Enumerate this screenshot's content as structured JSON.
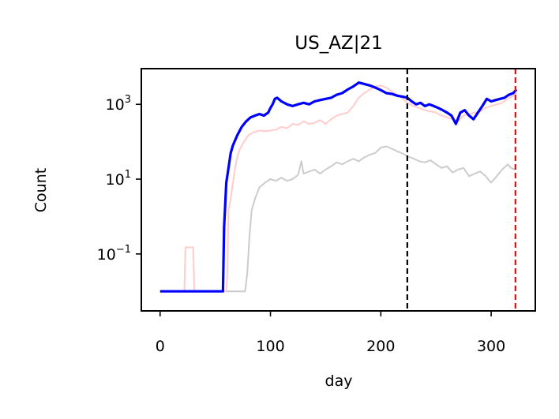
{
  "chart_data": {
    "type": "line",
    "title": "US_AZ|21",
    "xlabel": "day",
    "ylabel": "Count",
    "xlim": [
      -17,
      340
    ],
    "ylim": [
      0.003,
      9000
    ],
    "yscale": "log",
    "grid": false,
    "xticks": [
      0,
      100,
      200,
      300
    ],
    "xtick_labels": [
      "0",
      "100",
      "200",
      "300"
    ],
    "yticks": [
      0.1,
      10,
      1000
    ],
    "ytick_labels": [
      {
        "base": "10",
        "exp": "−1"
      },
      {
        "base": "10",
        "exp": "1"
      },
      {
        "base": "10",
        "exp": "3"
      }
    ],
    "vlines": [
      {
        "x": 224,
        "color": "#000000",
        "style": "dashed"
      },
      {
        "x": 322,
        "color": "#ff0000",
        "style": "dashed"
      }
    ],
    "series": [
      {
        "color": "#cccccc",
        "points": [
          [
            0,
            0.01
          ],
          [
            77,
            0.01
          ],
          [
            79,
            0.03
          ],
          [
            81,
            0.3
          ],
          [
            83,
            1.5
          ],
          [
            86,
            3
          ],
          [
            90,
            6
          ],
          [
            95,
            8
          ],
          [
            100,
            10
          ],
          [
            105,
            9
          ],
          [
            110,
            11
          ],
          [
            115,
            9
          ],
          [
            120,
            10
          ],
          [
            125,
            13
          ],
          [
            128,
            30
          ],
          [
            130,
            14
          ],
          [
            135,
            16
          ],
          [
            140,
            18
          ],
          [
            145,
            14
          ],
          [
            150,
            18
          ],
          [
            155,
            22
          ],
          [
            160,
            28
          ],
          [
            165,
            25
          ],
          [
            170,
            30
          ],
          [
            175,
            35
          ],
          [
            180,
            30
          ],
          [
            185,
            38
          ],
          [
            190,
            45
          ],
          [
            195,
            50
          ],
          [
            200,
            70
          ],
          [
            205,
            75
          ],
          [
            210,
            65
          ],
          [
            215,
            55
          ],
          [
            220,
            48
          ],
          [
            225,
            40
          ],
          [
            230,
            35
          ],
          [
            235,
            30
          ],
          [
            240,
            28
          ],
          [
            245,
            32
          ],
          [
            250,
            25
          ],
          [
            255,
            20
          ],
          [
            260,
            22
          ],
          [
            265,
            15
          ],
          [
            270,
            18
          ],
          [
            275,
            20
          ],
          [
            280,
            12
          ],
          [
            285,
            14
          ],
          [
            290,
            16
          ],
          [
            295,
            12
          ],
          [
            300,
            8
          ],
          [
            305,
            12
          ],
          [
            310,
            18
          ],
          [
            315,
            25
          ],
          [
            318,
            20
          ],
          [
            322,
            18
          ]
        ]
      },
      {
        "color": "#ffcccc",
        "points": [
          [
            0,
            0.01
          ],
          [
            22,
            0.01
          ],
          [
            23,
            0.15
          ],
          [
            30,
            0.15
          ],
          [
            31,
            0.01
          ],
          [
            60,
            0.01
          ],
          [
            61,
            0.03
          ],
          [
            62,
            1.5
          ],
          [
            64,
            3
          ],
          [
            66,
            8
          ],
          [
            68,
            20
          ],
          [
            70,
            40
          ],
          [
            72,
            60
          ],
          [
            75,
            90
          ],
          [
            80,
            150
          ],
          [
            85,
            180
          ],
          [
            90,
            200
          ],
          [
            95,
            190
          ],
          [
            100,
            200
          ],
          [
            105,
            210
          ],
          [
            110,
            250
          ],
          [
            115,
            230
          ],
          [
            120,
            300
          ],
          [
            125,
            280
          ],
          [
            130,
            350
          ],
          [
            135,
            300
          ],
          [
            140,
            320
          ],
          [
            145,
            380
          ],
          [
            150,
            300
          ],
          [
            155,
            400
          ],
          [
            160,
            500
          ],
          [
            165,
            550
          ],
          [
            170,
            600
          ],
          [
            175,
            900
          ],
          [
            180,
            1500
          ],
          [
            185,
            2000
          ],
          [
            190,
            2500
          ],
          [
            195,
            3000
          ],
          [
            200,
            3200
          ],
          [
            205,
            2800
          ],
          [
            210,
            2200
          ],
          [
            215,
            1800
          ],
          [
            220,
            1400
          ],
          [
            224,
            1100
          ],
          [
            230,
            900
          ],
          [
            235,
            800
          ],
          [
            240,
            700
          ],
          [
            245,
            650
          ],
          [
            250,
            600
          ],
          [
            255,
            500
          ],
          [
            260,
            450
          ],
          [
            265,
            400
          ],
          [
            270,
            350
          ],
          [
            275,
            500
          ],
          [
            280,
            550
          ],
          [
            285,
            600
          ],
          [
            290,
            650
          ],
          [
            295,
            800
          ],
          [
            300,
            900
          ],
          [
            305,
            1000
          ],
          [
            310,
            1100
          ],
          [
            315,
            1400
          ],
          [
            320,
            1700
          ],
          [
            323,
            2000
          ]
        ]
      },
      {
        "color": "#0000ff",
        "points": [
          [
            0,
            0.01
          ],
          [
            57,
            0.01
          ],
          [
            58,
            0.5
          ],
          [
            60,
            8
          ],
          [
            62,
            20
          ],
          [
            64,
            50
          ],
          [
            66,
            80
          ],
          [
            70,
            150
          ],
          [
            74,
            250
          ],
          [
            78,
            350
          ],
          [
            82,
            450
          ],
          [
            86,
            500
          ],
          [
            90,
            550
          ],
          [
            94,
            500
          ],
          [
            98,
            600
          ],
          [
            100,
            800
          ],
          [
            102,
            1000
          ],
          [
            104,
            1400
          ],
          [
            106,
            1500
          ],
          [
            110,
            1200
          ],
          [
            115,
            1000
          ],
          [
            120,
            900
          ],
          [
            125,
            1000
          ],
          [
            130,
            1100
          ],
          [
            135,
            1000
          ],
          [
            140,
            1200
          ],
          [
            145,
            1300
          ],
          [
            150,
            1400
          ],
          [
            155,
            1500
          ],
          [
            160,
            1800
          ],
          [
            165,
            2000
          ],
          [
            170,
            2500
          ],
          [
            175,
            3000
          ],
          [
            180,
            3800
          ],
          [
            185,
            3500
          ],
          [
            190,
            3200
          ],
          [
            195,
            2800
          ],
          [
            200,
            2400
          ],
          [
            205,
            2000
          ],
          [
            210,
            1900
          ],
          [
            215,
            1700
          ],
          [
            220,
            1600
          ],
          [
            224,
            1500
          ],
          [
            228,
            1200
          ],
          [
            232,
            1000
          ],
          [
            236,
            1100
          ],
          [
            240,
            900
          ],
          [
            244,
            1000
          ],
          [
            248,
            900
          ],
          [
            252,
            800
          ],
          [
            256,
            700
          ],
          [
            260,
            600
          ],
          [
            264,
            500
          ],
          [
            268,
            300
          ],
          [
            272,
            600
          ],
          [
            276,
            700
          ],
          [
            280,
            500
          ],
          [
            284,
            400
          ],
          [
            288,
            600
          ],
          [
            292,
            900
          ],
          [
            296,
            1400
          ],
          [
            300,
            1200
          ],
          [
            304,
            1300
          ],
          [
            308,
            1400
          ],
          [
            312,
            1500
          ],
          [
            316,
            1800
          ],
          [
            320,
            2000
          ],
          [
            323,
            2500
          ]
        ]
      }
    ]
  }
}
